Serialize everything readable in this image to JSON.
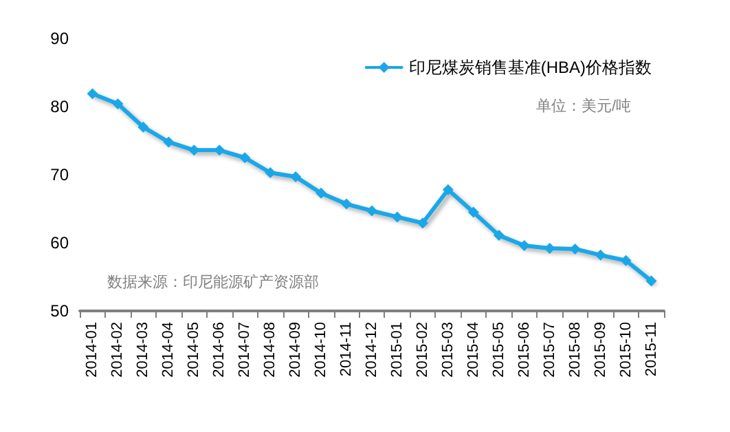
{
  "chart_data": {
    "type": "line",
    "categories": [
      "2014-01",
      "2014-02",
      "2014-03",
      "2014-04",
      "2014-05",
      "2014-06",
      "2014-07",
      "2014-08",
      "2014-09",
      "2014-10",
      "2014-11",
      "2014-12",
      "2015-01",
      "2015-02",
      "2015-03",
      "2015-04",
      "2015-05",
      "2015-06",
      "2015-07",
      "2015-08",
      "2015-09",
      "2015-10",
      "2015-11"
    ],
    "series": [
      {
        "name": "印尼煤炭销售基准(HBA)价格指数",
        "color": "#1aa7e8",
        "values": [
          81.9,
          80.4,
          77.0,
          74.8,
          73.6,
          73.6,
          72.5,
          70.3,
          69.7,
          67.3,
          65.7,
          64.7,
          63.8,
          62.9,
          67.8,
          64.5,
          61.1,
          59.6,
          59.2,
          59.1,
          58.2,
          57.4,
          54.4
        ]
      }
    ],
    "ylim": [
      50,
      90
    ],
    "yticks": [
      50,
      60,
      70,
      80,
      90
    ],
    "annotations": [
      "单位：美元/吨",
      "数据来源：印尼能源矿产资源部"
    ],
    "grid": false,
    "legend": "top right",
    "marker": "diamond",
    "line_style": "solid"
  }
}
